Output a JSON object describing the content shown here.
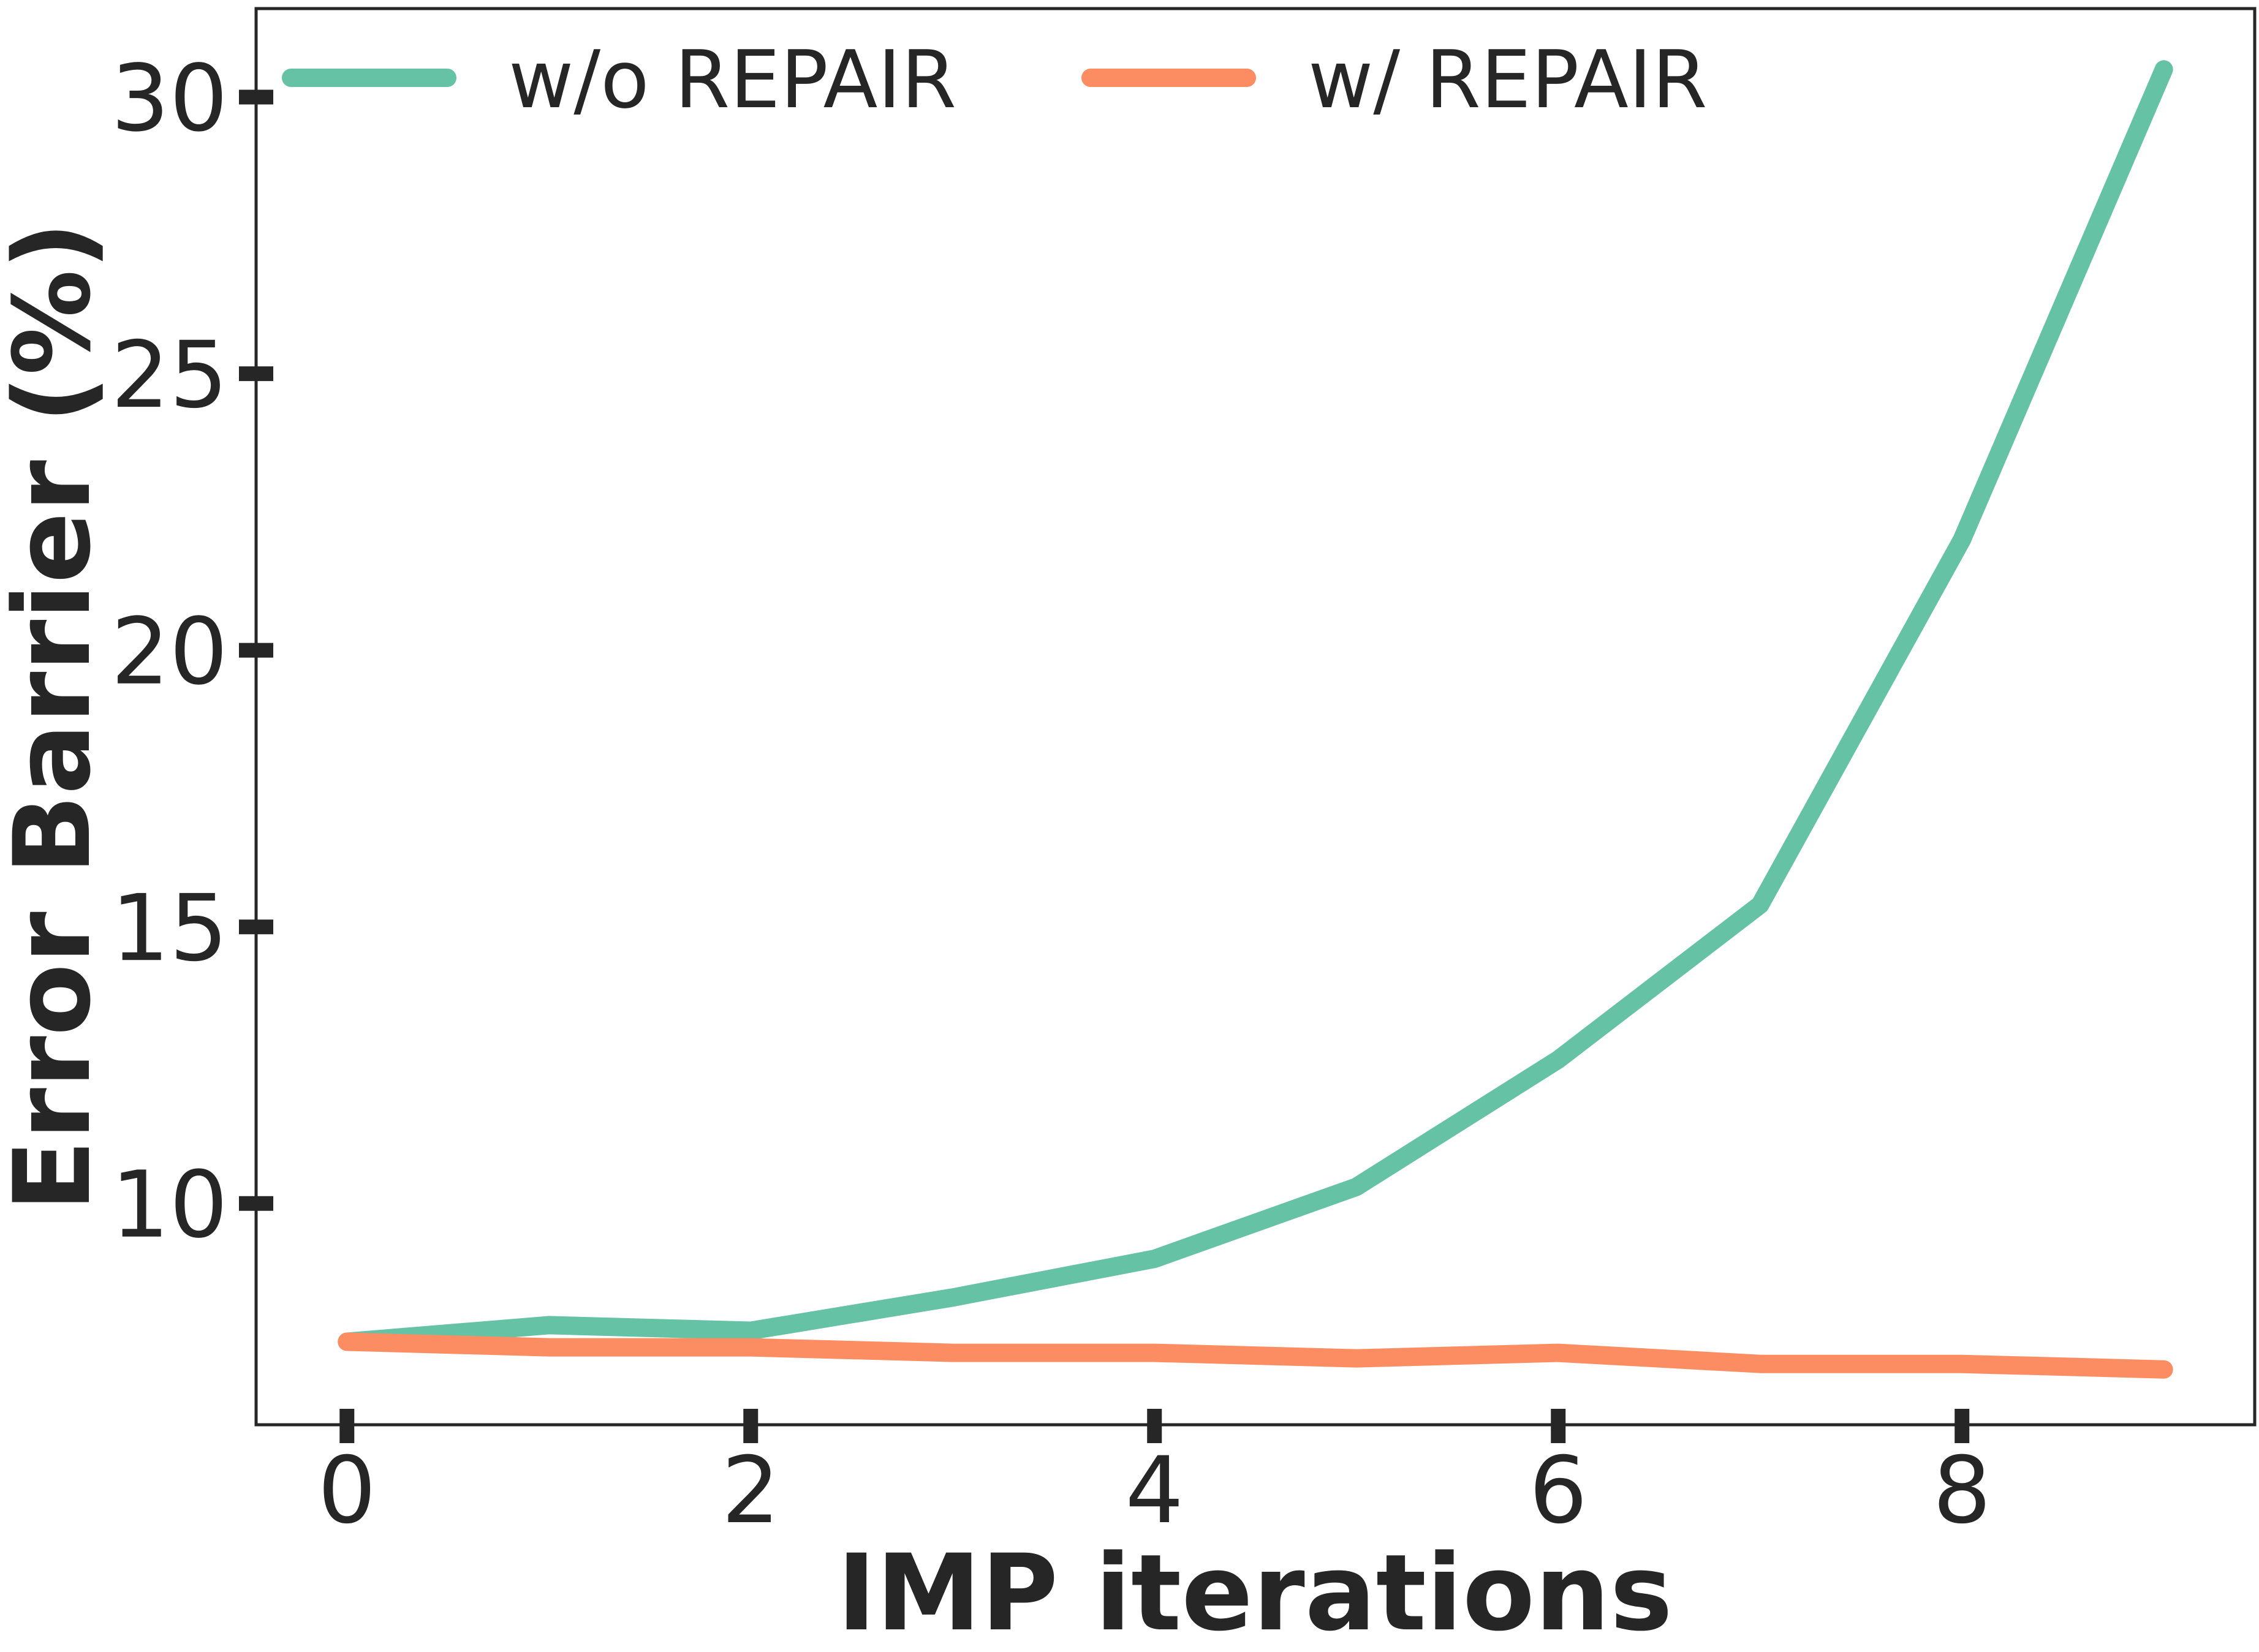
{
  "chart_data": {
    "type": "line",
    "xlabel": "IMP iterations",
    "ylabel": "Error Barrier (%)",
    "xlim": [
      -0.45,
      9.45
    ],
    "ylim": [
      6.0,
      31.6
    ],
    "xticks": [
      0,
      2,
      4,
      6,
      8
    ],
    "yticks": [
      10,
      15,
      20,
      25,
      30
    ],
    "xtick_labels": [
      "0",
      "2",
      "4",
      "6",
      "8"
    ],
    "ytick_labels": [
      "10",
      "15",
      "20",
      "25",
      "30"
    ],
    "grid": false,
    "legend_position": "top",
    "x": [
      0,
      1,
      2,
      3,
      4,
      5,
      6,
      7,
      8,
      9
    ],
    "series": [
      {
        "name": "w/o REPAIR",
        "color": "#66c2a5",
        "values": [
          7.5,
          7.8,
          7.7,
          8.3,
          9.0,
          10.3,
          12.6,
          15.4,
          22.0,
          30.5
        ]
      },
      {
        "name": "w/ REPAIR",
        "color": "#fc8d62",
        "values": [
          7.5,
          7.4,
          7.4,
          7.3,
          7.3,
          7.2,
          7.3,
          7.1,
          7.1,
          7.0
        ]
      }
    ]
  }
}
